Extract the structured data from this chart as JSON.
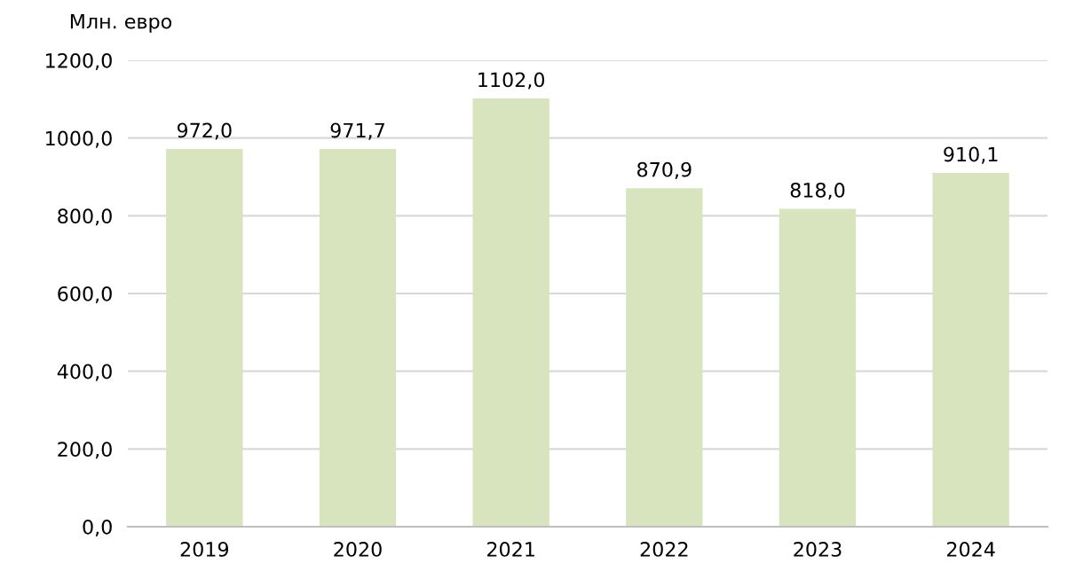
{
  "chart_data": {
    "type": "bar",
    "ylabel": "Млн. евро",
    "categories": [
      "2019",
      "2020",
      "2021",
      "2022",
      "2023",
      "2024"
    ],
    "values": [
      972.0,
      971.7,
      1102.0,
      870.9,
      818.0,
      910.1
    ],
    "value_labels": [
      "972,0",
      "971,7",
      "1102,0",
      "870,9",
      "818,0",
      "910,1"
    ],
    "color": "#d7e4bd",
    "ylim": [
      0,
      1200
    ],
    "yticks": [
      {
        "value": 0,
        "label": "0,0"
      },
      {
        "value": 200,
        "label": "200,0"
      },
      {
        "value": 400,
        "label": "400,0"
      },
      {
        "value": 600,
        "label": "600,0"
      },
      {
        "value": 800,
        "label": "800,0"
      },
      {
        "value": 1000,
        "label": "1000,0"
      },
      {
        "value": 1200,
        "label": "1200,0"
      }
    ],
    "grid": "y"
  }
}
